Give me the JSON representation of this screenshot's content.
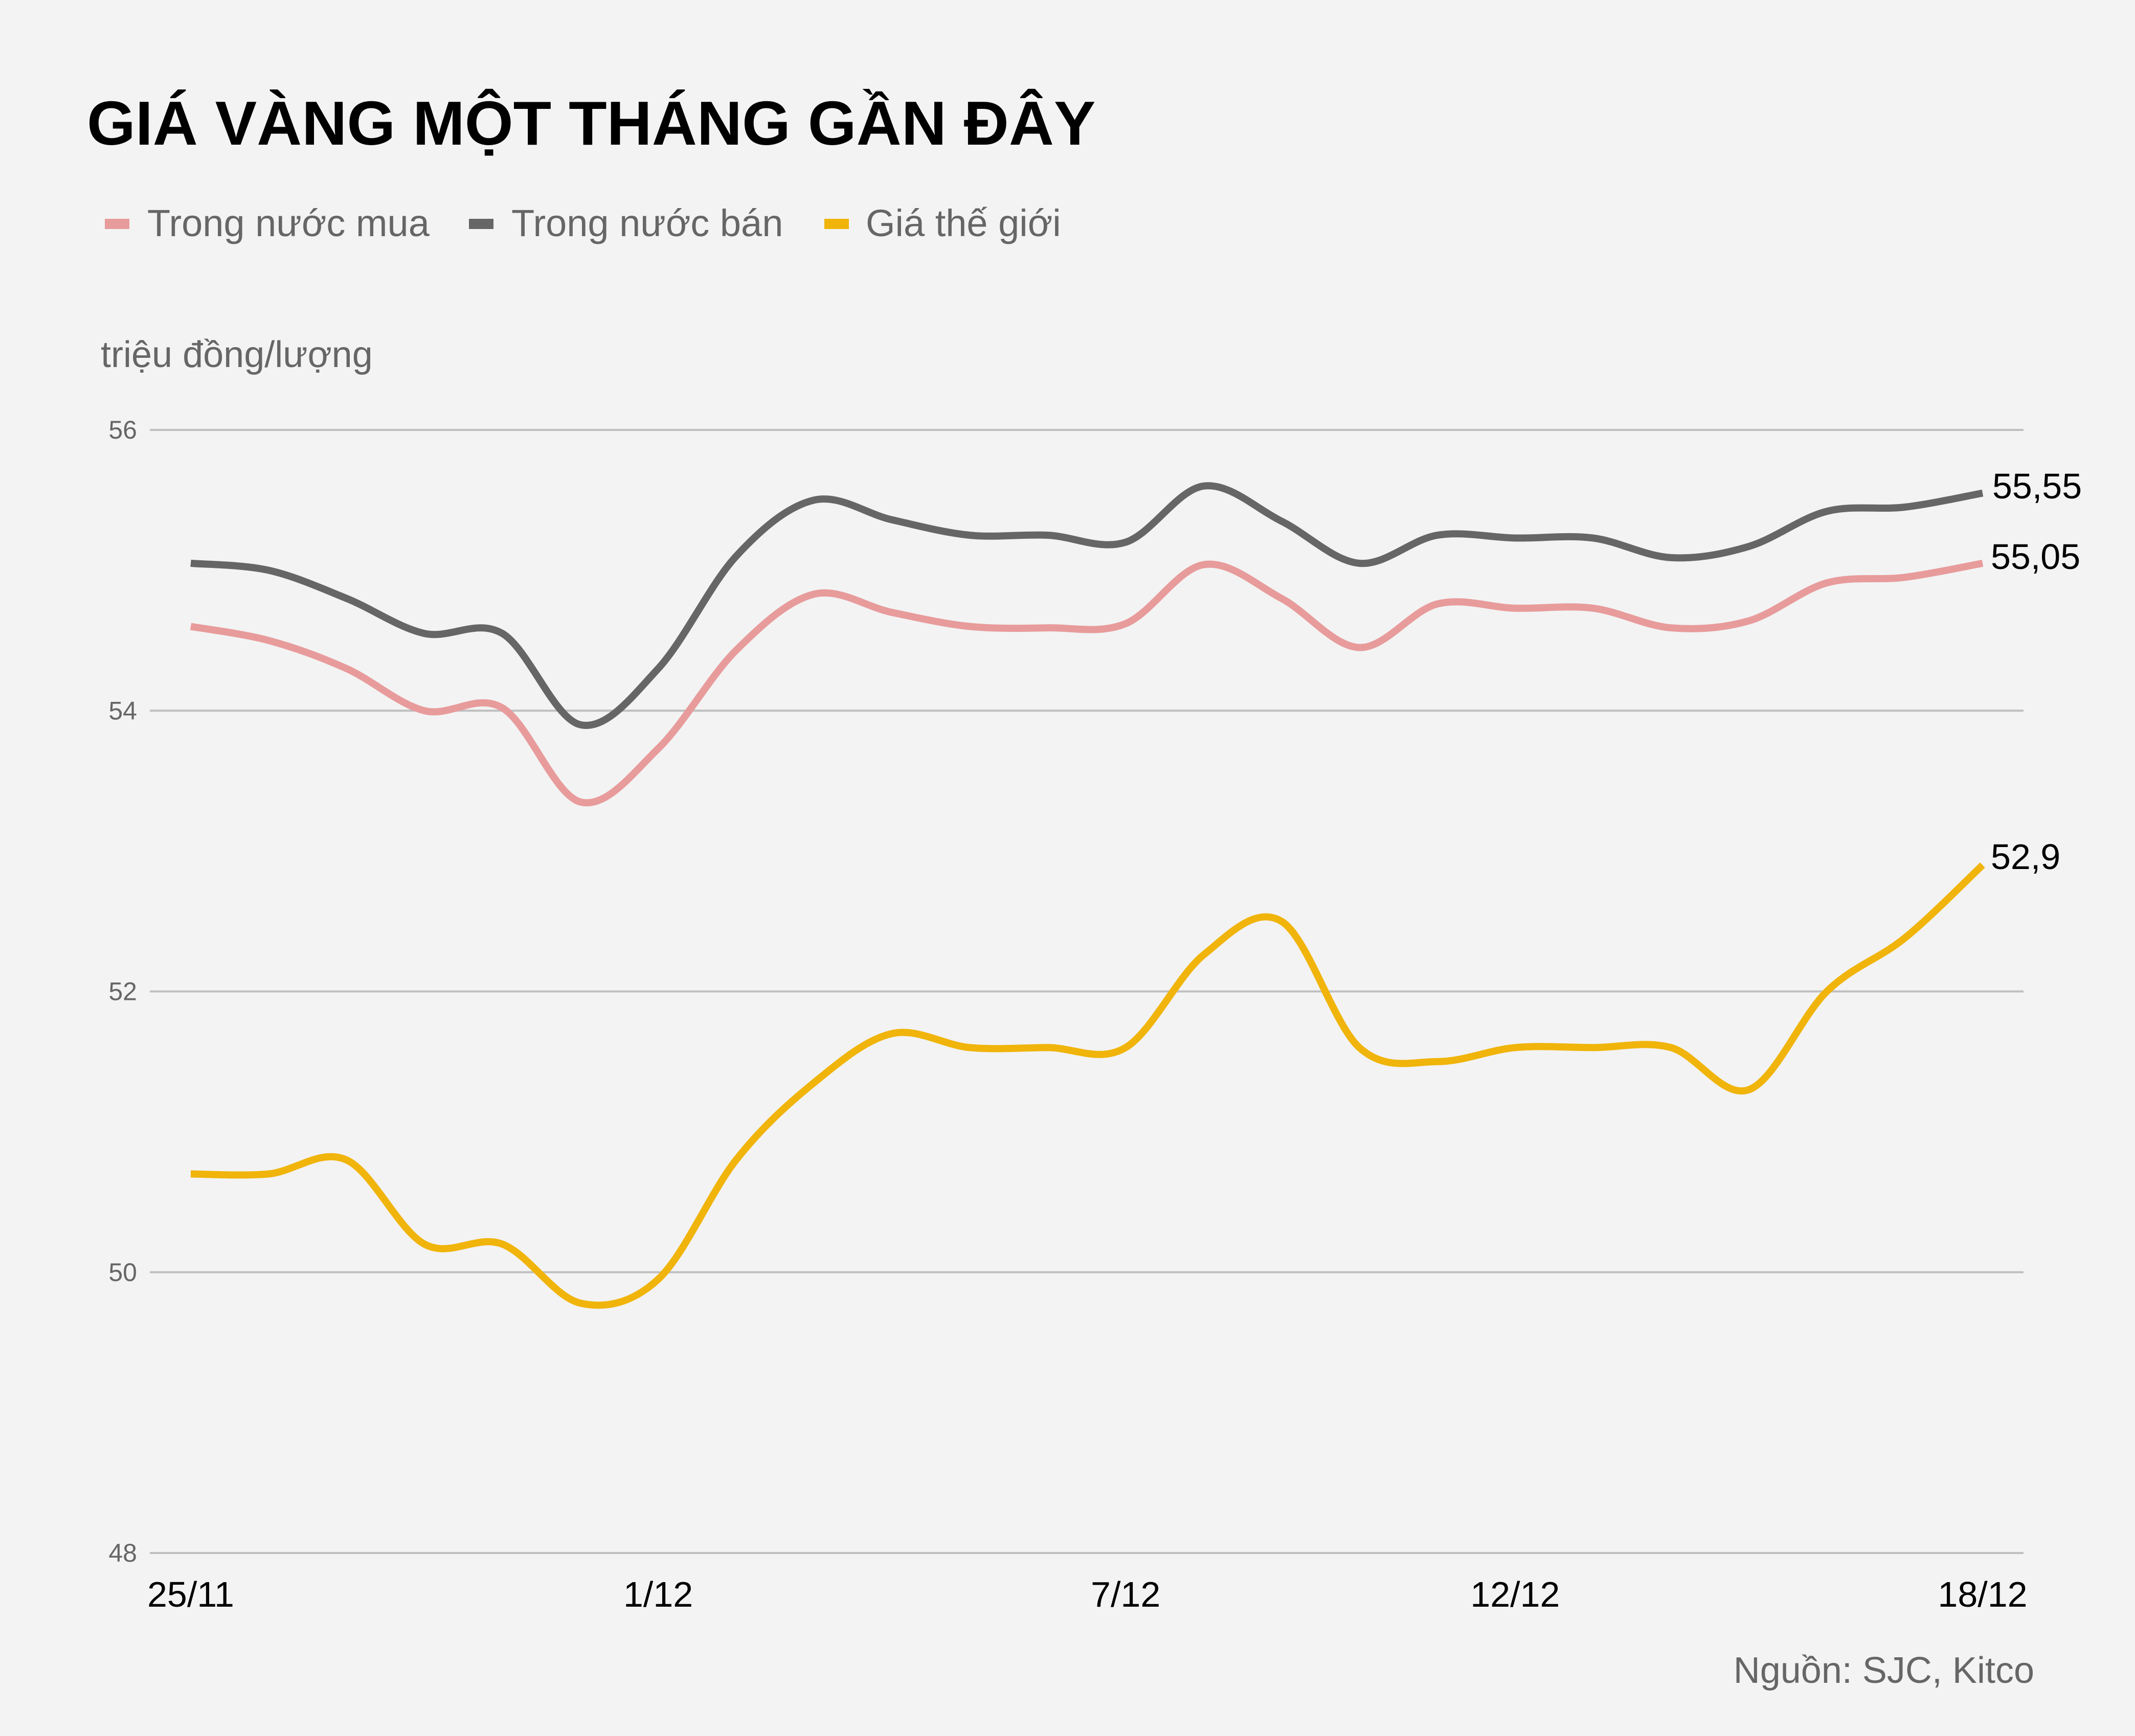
{
  "title": "GIÁ VÀNG MỘT THÁNG GẦN ĐÂY",
  "unit_label": "triệu đồng/lượng",
  "source": "Nguồn: SJC, Kitco",
  "colors": {
    "background": "#f3f3f3",
    "grid": "#bfbfbf",
    "domestic_buy": "#e89b9b",
    "domestic_sell": "#666666",
    "world": "#f0b40a"
  },
  "legend": [
    {
      "label": "Trong nước mua",
      "color": "#e89b9b"
    },
    {
      "label": "Trong nước bán",
      "color": "#666666"
    },
    {
      "label": "Giá thế giới",
      "color": "#f0b40a"
    }
  ],
  "y_ticks": [
    "56",
    "54",
    "52",
    "50",
    "48"
  ],
  "x_ticks": [
    {
      "label": "25/11",
      "index": 0
    },
    {
      "label": "1/12",
      "index": 6
    },
    {
      "label": "7/12",
      "index": 12
    },
    {
      "label": "12/12",
      "index": 17
    },
    {
      "label": "18/12",
      "index": 23
    }
  ],
  "end_labels": {
    "domestic_sell": "55,55",
    "domestic_buy": "55,05",
    "world": "52,9"
  },
  "chart_data": {
    "type": "line",
    "title": "GIÁ VÀNG MỘT THÁNG GẦN ĐÂY",
    "xlabel": "",
    "ylabel": "triệu đồng/lượng",
    "ylim": [
      48,
      56
    ],
    "yticks": [
      48,
      50,
      52,
      54,
      56
    ],
    "grid": true,
    "legend_position": "top-left",
    "x_tick_labels": [
      "25/11",
      "1/12",
      "7/12",
      "12/12",
      "18/12"
    ],
    "x_tick_indices": [
      0,
      6,
      12,
      17,
      23
    ],
    "n_points": 24,
    "series": [
      {
        "name": "Trong nước mua",
        "color": "#e89b9b",
        "values": [
          54.6,
          54.5,
          54.3,
          54.0,
          54.02,
          53.35,
          53.73,
          54.43,
          54.83,
          54.7,
          54.6,
          54.59,
          54.62,
          55.04,
          54.8,
          54.45,
          54.76,
          54.73,
          54.73,
          54.59,
          54.64,
          54.91,
          54.95,
          55.05
        ],
        "end_label": "55,05"
      },
      {
        "name": "Trong nước bán",
        "color": "#666666",
        "values": [
          55.05,
          55.0,
          54.8,
          54.55,
          54.55,
          53.9,
          54.3,
          55.1,
          55.5,
          55.36,
          55.25,
          55.25,
          55.2,
          55.6,
          55.35,
          55.05,
          55.25,
          55.23,
          55.23,
          55.09,
          55.17,
          55.42,
          55.45,
          55.55
        ],
        "end_label": "55,55"
      },
      {
        "name": "Giá thế giới",
        "color": "#f0b40a",
        "values": [
          50.7,
          50.7,
          50.8,
          50.2,
          50.2,
          49.78,
          49.95,
          50.8,
          51.35,
          51.7,
          51.6,
          51.6,
          51.6,
          52.26,
          52.5,
          51.6,
          51.5,
          51.6,
          51.6,
          51.6,
          51.3,
          52.0,
          52.38,
          52.9
        ],
        "end_label": "52,9"
      }
    ]
  }
}
